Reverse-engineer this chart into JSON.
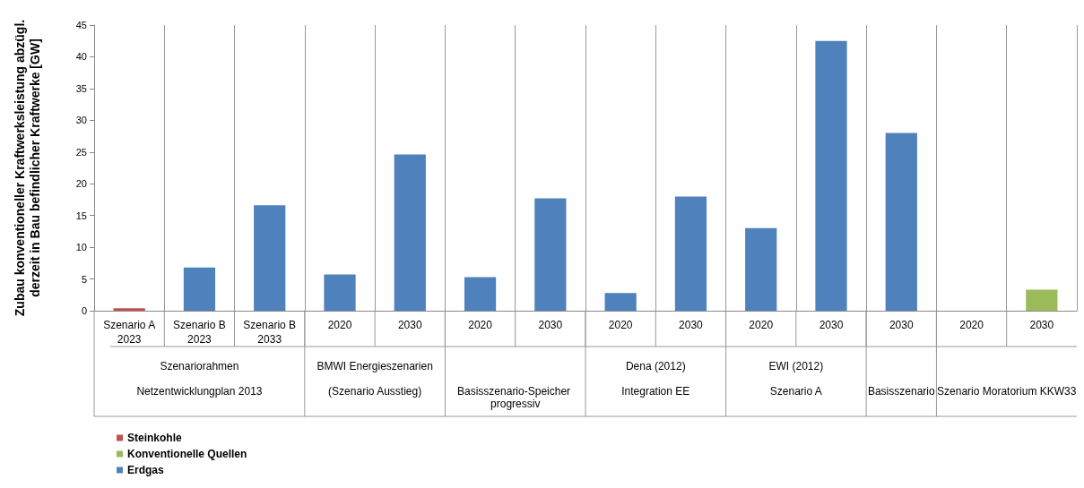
{
  "chart_data": {
    "type": "bar",
    "stacked": true,
    "ylabel": "Zubau konventioneller Kraftwerksleistung abzügl. derzeit in Bau befindlicher Kraftwerke [GW]",
    "categories": [
      "Szenario A\n2023",
      "Szenario B\n2023",
      "Szenario B\n2033",
      "2020",
      "2030",
      "2020",
      "2030",
      "2020",
      "2030",
      "2020",
      "2030",
      "2030",
      "2020",
      "2030"
    ],
    "series": [
      {
        "name": "Steinkohle",
        "color": "#c0504d",
        "values": [
          0.4,
          null,
          null,
          null,
          null,
          null,
          null,
          null,
          null,
          null,
          null,
          null,
          null,
          null
        ]
      },
      {
        "name": "Konventionelle Quellen",
        "color": "#9bbb59",
        "values": [
          null,
          null,
          null,
          null,
          null,
          null,
          null,
          null,
          null,
          null,
          null,
          null,
          null,
          3.3
        ]
      },
      {
        "name": "Erdgas",
        "color": "#4f81bd",
        "values": [
          null,
          6.8,
          16.6,
          5.7,
          24.6,
          5.3,
          17.7,
          2.8,
          18.0,
          13.0,
          42.5,
          28.0,
          null,
          null
        ]
      }
    ],
    "annotations": [
      "Szenariorahmen\nNetzentwicklungplan 2013",
      "BMWI Energieszenarien\n(Szenario Ausstieg)",
      "Basisszenario-Speicher progressiv",
      "Dena (2012)\nIntegration EE",
      "EWI (2012)\nSzenario A",
      "Basisszenario",
      "Szenario Moratorium KKW33"
    ],
    "ylim": [
      0,
      45
    ],
    "yticks": [
      0,
      5,
      10,
      15,
      20,
      25,
      30,
      35,
      40,
      45
    ],
    "grid": "x",
    "legend": "bottom left"
  }
}
